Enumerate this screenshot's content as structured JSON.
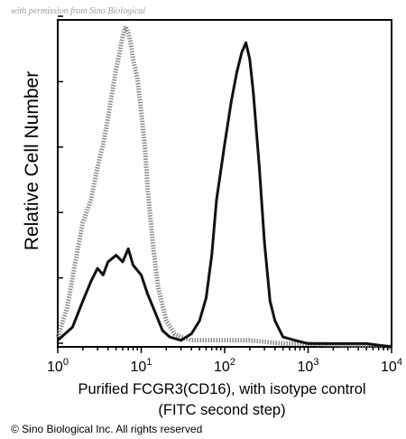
{
  "watermark": "with permission from Sino Biological",
  "copyright": "© Sino Biological Inc. All rights reserved",
  "chart_data": {
    "type": "line",
    "title": "",
    "xlabel": "Purified FCGR3(CD16), with isotype control",
    "xlabel_line2": "(FITC second step)",
    "ylabel": "Relative Cell Number",
    "xscale": "log",
    "xlim": [
      1,
      10000
    ],
    "ylim": [
      0,
      100
    ],
    "x_tick_labels": [
      {
        "base": "10",
        "exp": "0",
        "value": 1
      },
      {
        "base": "10",
        "exp": "1",
        "value": 10
      },
      {
        "base": "10",
        "exp": "2",
        "value": 100
      },
      {
        "base": "10",
        "exp": "3",
        "value": 1000
      },
      {
        "base": "10",
        "exp": "4",
        "value": 10000
      }
    ],
    "grid": false,
    "legend": "none",
    "series": [
      {
        "color": "#8c8c8c",
        "style": "dotted",
        "x": [
          1,
          1.3,
          1.6,
          2,
          2.5,
          3,
          3.5,
          4,
          4.5,
          5,
          5.5,
          6,
          6.5,
          7,
          7.5,
          8,
          9,
          10,
          11,
          12,
          14,
          16,
          20,
          25,
          30,
          40,
          60,
          100,
          200,
          500,
          1000,
          10000
        ],
        "y": [
          3,
          12,
          25,
          38,
          45,
          55,
          62,
          70,
          78,
          85,
          90,
          95,
          98,
          96,
          93,
          88,
          82,
          72,
          62,
          48,
          30,
          18,
          8,
          4,
          3,
          2,
          2,
          2,
          2,
          1,
          1,
          0
        ]
      },
      {
        "color": "#111111",
        "style": "solid",
        "x": [
          1,
          1.5,
          2,
          2.5,
          3,
          3.5,
          4,
          5,
          6,
          7,
          8,
          10,
          12,
          15,
          18,
          22,
          30,
          40,
          50,
          60,
          70,
          80,
          100,
          120,
          140,
          160,
          180,
          200,
          220,
          260,
          300,
          350,
          400,
          500,
          700,
          1000,
          2000,
          5000,
          10000
        ],
        "y": [
          2,
          6,
          14,
          20,
          24,
          22,
          26,
          28,
          26,
          30,
          25,
          22,
          16,
          10,
          5,
          3,
          2,
          4,
          8,
          15,
          28,
          45,
          62,
          75,
          84,
          90,
          93,
          88,
          78,
          55,
          32,
          14,
          8,
          3,
          2,
          1,
          1,
          1,
          0
        ]
      }
    ]
  }
}
